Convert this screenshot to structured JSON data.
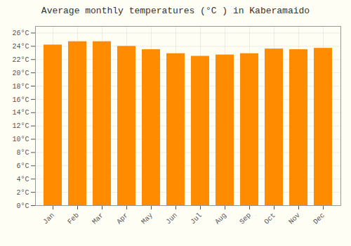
{
  "chart_data": {
    "type": "bar",
    "title": "Average monthly temperatures (°C ) in Kaberamaido",
    "categories": [
      "Jan",
      "Feb",
      "Mar",
      "Apr",
      "May",
      "Jun",
      "Jul",
      "Aug",
      "Sep",
      "Oct",
      "Nov",
      "Dec"
    ],
    "values": [
      24.2,
      24.7,
      24.7,
      24.0,
      23.5,
      22.9,
      22.5,
      22.7,
      22.9,
      23.6,
      23.5,
      23.7
    ],
    "color": "#FF8C00",
    "ylim": [
      0,
      27
    ],
    "yticks": [
      {
        "value": 0,
        "label": "0°C"
      },
      {
        "value": 2,
        "label": "2°C"
      },
      {
        "value": 4,
        "label": "4°C"
      },
      {
        "value": 6,
        "label": "6°C"
      },
      {
        "value": 8,
        "label": "8°C"
      },
      {
        "value": 10,
        "label": "10°C"
      },
      {
        "value": 12,
        "label": "12°C"
      },
      {
        "value": 14,
        "label": "14°C"
      },
      {
        "value": 16,
        "label": "16°C"
      },
      {
        "value": 18,
        "label": "18°C"
      },
      {
        "value": 20,
        "label": "20°C"
      },
      {
        "value": 22,
        "label": "22°C"
      },
      {
        "value": 24,
        "label": "24°C"
      },
      {
        "value": 26,
        "label": "26°C"
      }
    ],
    "grid": true
  }
}
